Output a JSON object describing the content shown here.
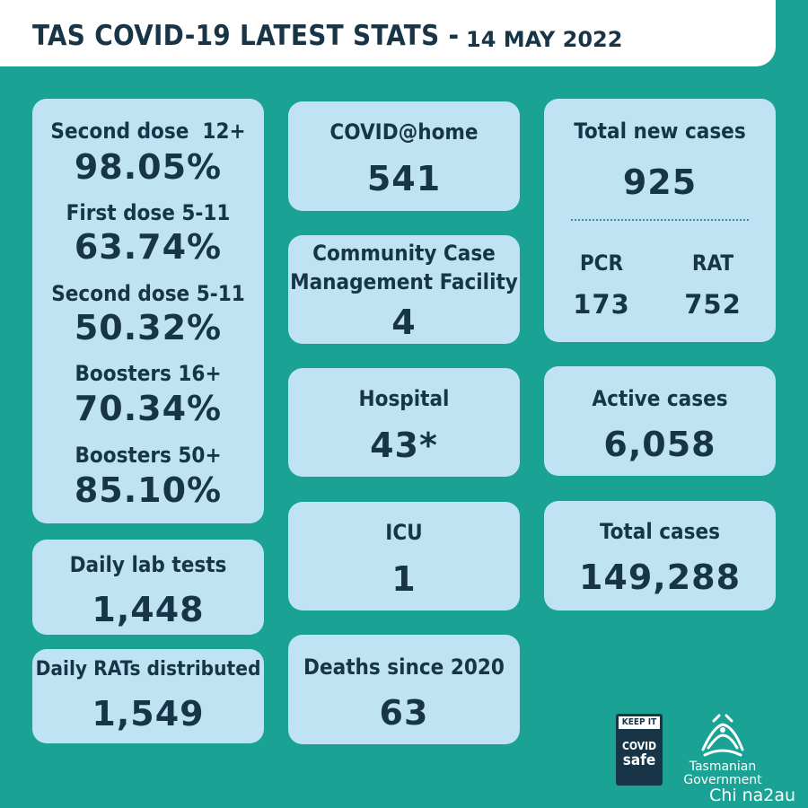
{
  "header": {
    "title": "TAS COVID-19 LATEST STATS -",
    "date": "14 MAY 2022"
  },
  "vaccination": {
    "items": [
      {
        "label": "Second dose  12+",
        "value": "98.05%"
      },
      {
        "label": "First dose 5-11",
        "value": "63.74%"
      },
      {
        "label": "Second dose 5-11",
        "value": "50.32%"
      },
      {
        "label": "Boosters 16+",
        "value": "70.34%"
      },
      {
        "label": "Boosters 50+",
        "value": "85.10%"
      }
    ]
  },
  "daily_lab_tests": {
    "label": "Daily lab tests",
    "value": "1,448"
  },
  "daily_rats": {
    "label": "Daily RATs distributed",
    "value": "1,549"
  },
  "covid_home": {
    "label": "COVID@home",
    "value": "541"
  },
  "ccmf": {
    "label_line1": "Community Case",
    "label_line2": "Management Facility",
    "value": "4"
  },
  "hospital": {
    "label": "Hospital",
    "value": "43*"
  },
  "icu": {
    "label": "ICU",
    "value": "1"
  },
  "deaths": {
    "label": "Deaths since 2020",
    "value": "63"
  },
  "new_cases": {
    "label": "Total new cases",
    "value": "925",
    "pcr_label": "PCR",
    "pcr_value": "173",
    "rat_label": "RAT",
    "rat_value": "752"
  },
  "active_cases": {
    "label": "Active cases",
    "value": "6,058"
  },
  "total_cases": {
    "label": "Total cases",
    "value": "149,288"
  },
  "logos": {
    "covid_safe_top": "KEEP IT",
    "covid_safe_mid": "COVID",
    "covid_safe_bot": "safe",
    "tas_gov_line1": "Tasmanian",
    "tas_gov_line2": "Government"
  },
  "watermark": "Chi na2au",
  "colors": {
    "background": "#1aa394",
    "card": "#bfe3f3",
    "text": "#173547"
  }
}
